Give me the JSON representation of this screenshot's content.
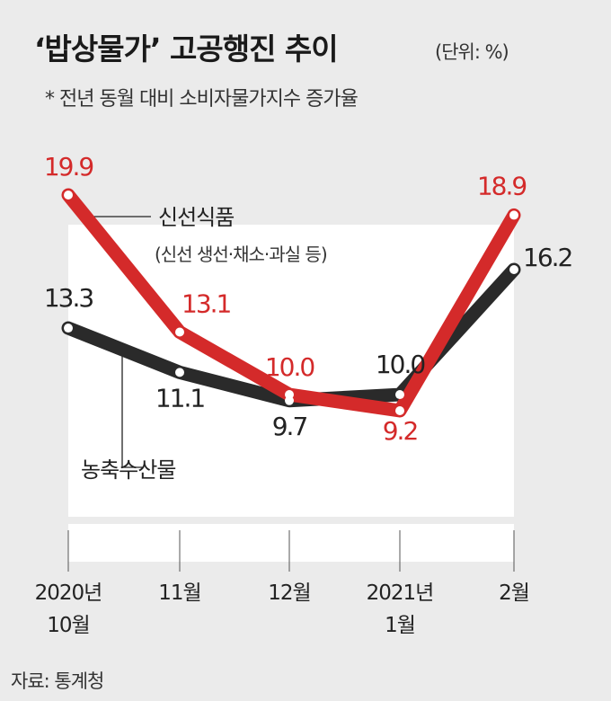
{
  "header": {
    "title": "‘밥상물가’ 고공행진 추이",
    "unit": "(단위: %)",
    "subtitle": "* 전년 동월 대비 소비자물가지수 증가율"
  },
  "source": "자료: 통계청",
  "chart_data": {
    "type": "line",
    "title": "‘밥상물가’ 고공행진 추이",
    "categories": [
      "2020년\n10월",
      "11월",
      "12월",
      "2021년\n1월",
      "2월"
    ],
    "category_lines": [
      [
        "2020년",
        "10월"
      ],
      [
        "11월"
      ],
      [
        "12월"
      ],
      [
        "2021년",
        "1월"
      ],
      [
        "2월"
      ]
    ],
    "series": [
      {
        "name": "신선식품",
        "note": "(신선 생선·채소·과실 등)",
        "color": "#d42a2a",
        "values": [
          19.9,
          13.1,
          10.0,
          9.2,
          18.9
        ],
        "labels": [
          "19.9",
          "13.1",
          "10.0",
          "9.2",
          "18.9"
        ]
      },
      {
        "name": "농축수산물",
        "color": "#2a2a2a",
        "values": [
          13.3,
          11.1,
          9.7,
          10.0,
          16.2
        ],
        "labels": [
          "13.3",
          "11.1",
          "9.7",
          "10.0",
          "16.2"
        ]
      }
    ],
    "grid": false,
    "legend": "inline"
  }
}
